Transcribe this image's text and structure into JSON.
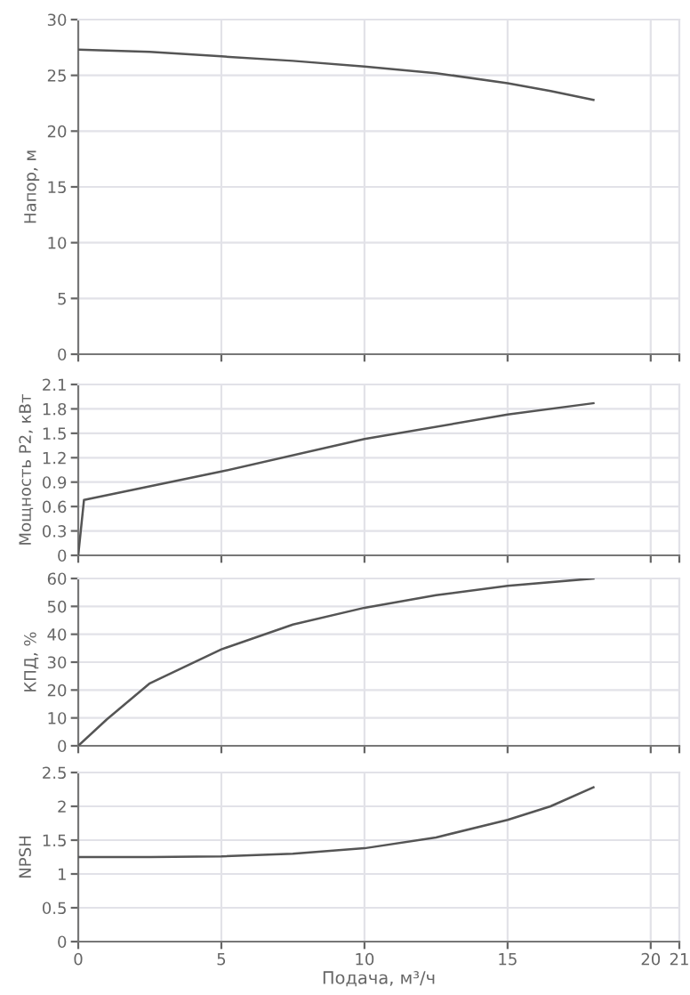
{
  "chart_data": [
    {
      "type": "line",
      "ylabel": "Напор, м",
      "xlim": [
        0,
        21
      ],
      "xticks": [
        0,
        5,
        10,
        15,
        20,
        21
      ],
      "ylim": [
        0,
        30
      ],
      "yticks": [
        0,
        5,
        10,
        15,
        20,
        25,
        30
      ],
      "grid": true,
      "tick_labels": "y",
      "series": [
        {
          "color": "#555555",
          "x": [
            0,
            2.5,
            5,
            7.5,
            10,
            12.5,
            15,
            16.5,
            18
          ],
          "values": [
            27.3,
            27.1,
            26.7,
            26.3,
            25.8,
            25.2,
            24.3,
            23.6,
            22.8
          ]
        }
      ]
    },
    {
      "type": "line",
      "ylabel": "Мощность P2, кВт",
      "xlim": [
        0,
        21
      ],
      "xticks": [
        0,
        5,
        10,
        15,
        20,
        21
      ],
      "ylim": [
        0,
        2.1
      ],
      "yticks": [
        0,
        0.3,
        0.6,
        0.9,
        1.2,
        1.5,
        1.8,
        2.1
      ],
      "grid": true,
      "tick_labels": "y",
      "series": [
        {
          "color": "#555555",
          "x": [
            0,
            0.2,
            5,
            10,
            15,
            18
          ],
          "values": [
            0,
            0.68,
            1.03,
            1.43,
            1.73,
            1.87
          ]
        }
      ]
    },
    {
      "type": "line",
      "ylabel": "КПД, %",
      "xlim": [
        0,
        21
      ],
      "xticks": [
        0,
        5,
        10,
        15,
        20,
        21
      ],
      "ylim": [
        0,
        60
      ],
      "yticks": [
        0,
        10,
        20,
        30,
        40,
        50,
        60
      ],
      "grid": true,
      "tick_labels": "y",
      "series": [
        {
          "color": "#555555",
          "x": [
            0,
            1,
            2.5,
            5,
            7.5,
            10,
            12.5,
            15,
            18
          ],
          "values": [
            0,
            9.5,
            22.4,
            34.6,
            43.5,
            49.5,
            54,
            57.4,
            60
          ]
        }
      ]
    },
    {
      "type": "line",
      "ylabel": "NPSH",
      "xlabel": "Подача, м³/ч",
      "xlim": [
        0,
        21
      ],
      "xticks": [
        0,
        5,
        10,
        15,
        20,
        21
      ],
      "ylim": [
        0,
        2.5
      ],
      "yticks": [
        0,
        0.5,
        1,
        1.5,
        2,
        2.5
      ],
      "grid": true,
      "series": [
        {
          "color": "#555555",
          "x": [
            0,
            2.5,
            5,
            7.5,
            10,
            12.5,
            15,
            16.5,
            18
          ],
          "values": [
            1.25,
            1.25,
            1.26,
            1.3,
            1.38,
            1.54,
            1.8,
            2.0,
            2.28
          ]
        }
      ]
    }
  ]
}
